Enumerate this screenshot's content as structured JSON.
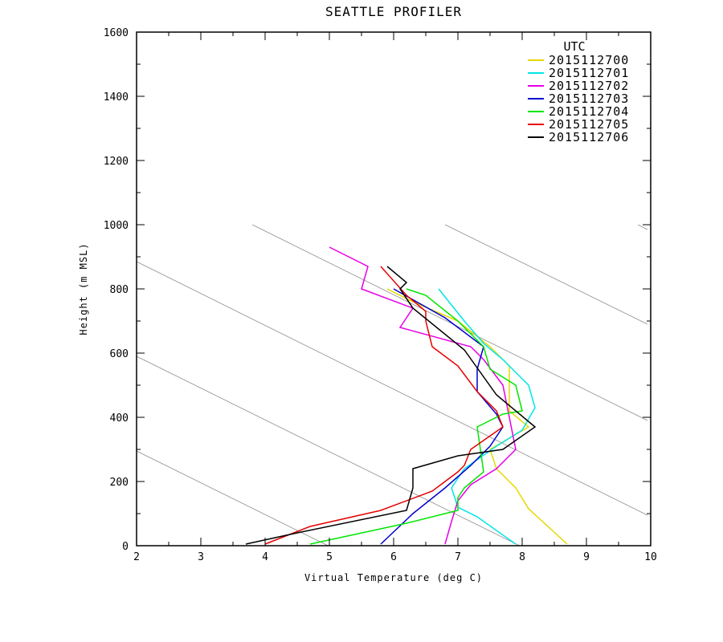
{
  "chart_data": {
    "type": "line",
    "title": "SEATTLE PROFILER",
    "xlabel": "Virtual Temperature (deg C)",
    "ylabel": "Height (m MSL)",
    "xlim": [
      2,
      10
    ],
    "ylim": [
      0,
      1600
    ],
    "xticks": [
      "2",
      "3",
      "4",
      "5",
      "6",
      "7",
      "8",
      "9",
      "10"
    ],
    "yticks": [
      "0",
      "200",
      "400",
      "600",
      "800",
      "1000",
      "1200",
      "1400",
      "1600"
    ],
    "legend_title": "UTC",
    "legend_position": "top-right",
    "grid": false,
    "reference_lines": {
      "color": "#8c8c8c",
      "segments": [
        [
          [
            2,
            295
          ],
          [
            4.98,
            0
          ]
        ],
        [
          [
            2,
            590
          ],
          [
            7.96,
            0
          ]
        ],
        [
          [
            2,
            885
          ],
          [
            9.95,
            95
          ]
        ],
        [
          [
            3.8,
            1000
          ],
          [
            9.95,
            390
          ]
        ],
        [
          [
            6.8,
            1000
          ],
          [
            9.95,
            690
          ]
        ],
        [
          [
            9.8,
            1000
          ],
          [
            9.95,
            985
          ]
        ]
      ]
    },
    "series": [
      {
        "name": "2015112700",
        "color": "#e6d800",
        "points": [
          [
            8.7,
            5
          ],
          [
            8.1,
            115
          ],
          [
            7.9,
            180
          ],
          [
            7.6,
            240
          ],
          [
            7.5,
            300
          ],
          [
            8.1,
            370
          ],
          [
            7.8,
            420
          ],
          [
            7.8,
            560
          ],
          [
            7.5,
            620
          ],
          [
            7.0,
            700
          ],
          [
            6.3,
            760
          ],
          [
            5.9,
            800
          ]
        ]
      },
      {
        "name": "2015112701",
        "color": "#00e5e5",
        "points": [
          [
            7.9,
            5
          ],
          [
            7.3,
            90
          ],
          [
            7.0,
            120
          ],
          [
            6.9,
            180
          ],
          [
            7.1,
            240
          ],
          [
            7.6,
            310
          ],
          [
            8.0,
            360
          ],
          [
            8.2,
            430
          ],
          [
            8.1,
            500
          ],
          [
            7.7,
            580
          ],
          [
            7.4,
            630
          ],
          [
            7.1,
            700
          ],
          [
            6.7,
            800
          ]
        ]
      },
      {
        "name": "2015112702",
        "color": "#e600e6",
        "points": [
          [
            6.8,
            5
          ],
          [
            6.9,
            75
          ],
          [
            7.0,
            140
          ],
          [
            7.2,
            190
          ],
          [
            7.6,
            240
          ],
          [
            7.9,
            300
          ],
          [
            7.8,
            400
          ],
          [
            7.7,
            500
          ],
          [
            7.4,
            580
          ],
          [
            7.2,
            620
          ],
          [
            6.1,
            680
          ],
          [
            6.3,
            740
          ],
          [
            5.5,
            800
          ],
          [
            5.6,
            870
          ],
          [
            5.0,
            930
          ]
        ]
      },
      {
        "name": "2015112703",
        "color": "#0000cc",
        "points": [
          [
            5.8,
            5
          ],
          [
            6.3,
            100
          ],
          [
            6.8,
            180
          ],
          [
            7.2,
            250
          ],
          [
            7.5,
            310
          ],
          [
            7.7,
            370
          ],
          [
            7.6,
            410
          ],
          [
            7.3,
            480
          ],
          [
            7.3,
            550
          ],
          [
            7.4,
            620
          ],
          [
            6.8,
            710
          ],
          [
            6.0,
            800
          ]
        ]
      },
      {
        "name": "2015112704",
        "color": "#00e600",
        "points": [
          [
            4.7,
            5
          ],
          [
            6.2,
            70
          ],
          [
            7.0,
            110
          ],
          [
            7.0,
            150
          ],
          [
            7.1,
            180
          ],
          [
            7.4,
            230
          ],
          [
            7.3,
            370
          ],
          [
            7.7,
            410
          ],
          [
            8.0,
            420
          ],
          [
            7.9,
            500
          ],
          [
            7.5,
            550
          ],
          [
            7.4,
            620
          ],
          [
            7.0,
            700
          ],
          [
            6.5,
            780
          ],
          [
            6.2,
            800
          ]
        ]
      },
      {
        "name": "2015112705",
        "color": "#e60000",
        "points": [
          [
            4.0,
            5
          ],
          [
            4.7,
            60
          ],
          [
            5.8,
            110
          ],
          [
            6.6,
            170
          ],
          [
            7.0,
            230
          ],
          [
            7.1,
            250
          ],
          [
            7.2,
            300
          ],
          [
            7.7,
            370
          ],
          [
            7.6,
            420
          ],
          [
            7.3,
            480
          ],
          [
            7.0,
            560
          ],
          [
            6.6,
            620
          ],
          [
            6.5,
            700
          ],
          [
            6.5,
            730
          ],
          [
            6.2,
            780
          ],
          [
            5.8,
            870
          ]
        ]
      },
      {
        "name": "2015112706",
        "color": "#000000",
        "points": [
          [
            3.7,
            5
          ],
          [
            4.5,
            40
          ],
          [
            6.2,
            110
          ],
          [
            6.3,
            180
          ],
          [
            6.3,
            240
          ],
          [
            7.0,
            280
          ],
          [
            7.7,
            300
          ],
          [
            8.2,
            370
          ],
          [
            7.6,
            470
          ],
          [
            7.1,
            610
          ],
          [
            6.3,
            740
          ],
          [
            6.1,
            800
          ],
          [
            6.2,
            820
          ],
          [
            5.9,
            870
          ]
        ]
      }
    ]
  }
}
